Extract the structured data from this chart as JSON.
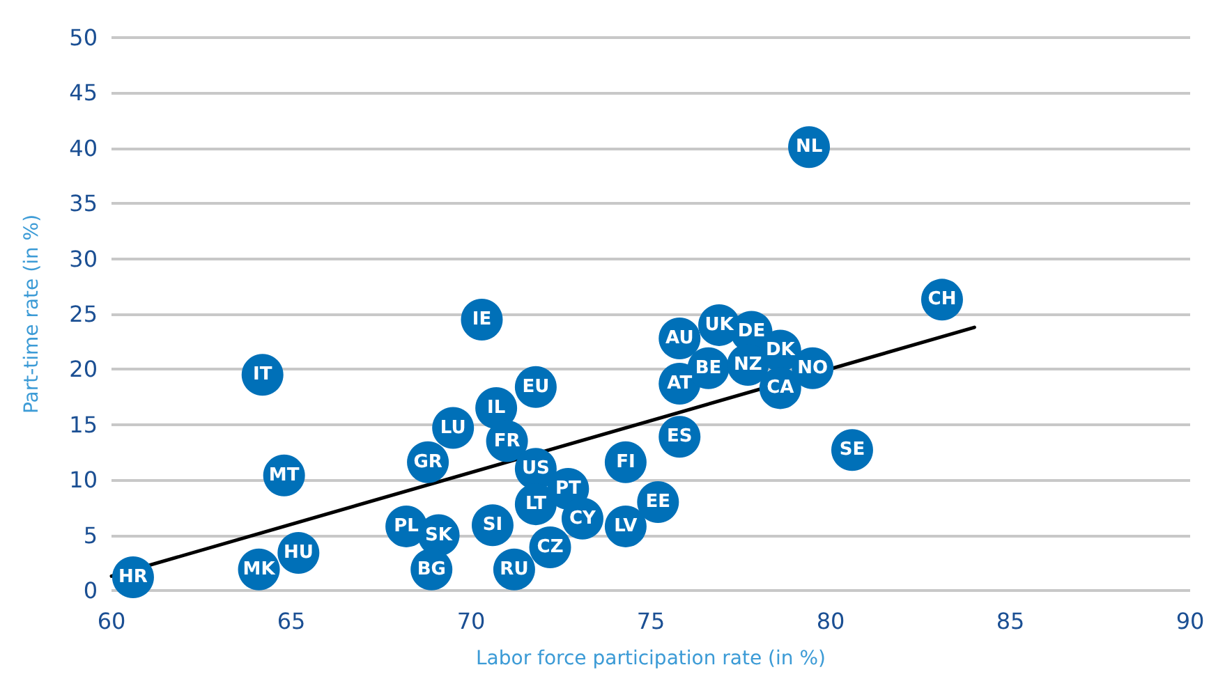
{
  "chart_data": {
    "type": "scatter",
    "xlabel": "Labor force participation rate (in %)",
    "ylabel": "Part-time rate (in %)",
    "xlim": [
      60,
      90
    ],
    "xticks": [
      60,
      65,
      70,
      75,
      80,
      85,
      90
    ],
    "ylim": [
      0,
      50
    ],
    "yticks": [
      0,
      5,
      10,
      15,
      20,
      25,
      30,
      35,
      40,
      45,
      50
    ],
    "grid": "y",
    "marker": "circle",
    "series": [
      {
        "type": "line",
        "color": "#000000",
        "x": [
          60.0,
          84.0
        ],
        "values": [
          1.3,
          23.8
        ],
        "marker": "none",
        "line_style": "solid"
      },
      {
        "type": "scatter",
        "color": "#0070b8",
        "x": [
          60.6,
          64.1,
          65.2,
          64.2,
          64.8,
          68.2,
          69.1,
          68.9,
          68.8,
          69.5,
          70.3,
          70.7,
          71.0,
          70.6,
          71.2,
          71.8,
          71.8,
          71.8,
          72.2,
          72.7,
          73.1,
          74.3,
          74.3,
          75.2,
          75.8,
          75.8,
          75.8,
          76.6,
          76.9,
          77.8,
          77.7,
          78.6,
          78.6,
          79.5,
          79.4,
          80.6,
          83.1
        ],
        "values": [
          1.2,
          1.9,
          3.4,
          19.5,
          10.4,
          5.8,
          5.0,
          1.9,
          11.6,
          14.7,
          24.5,
          16.5,
          13.5,
          5.9,
          1.9,
          18.4,
          11.0,
          7.8,
          3.9,
          9.2,
          6.5,
          11.6,
          5.8,
          8.0,
          13.9,
          22.8,
          18.7,
          20.1,
          24.0,
          23.4,
          20.4,
          21.7,
          18.3,
          20.1,
          40.1,
          12.7,
          26.3
        ],
        "value_labels": [
          "HR",
          "MK",
          "HU",
          "IT",
          "MT",
          "PL",
          "SK",
          "BG",
          "GR",
          "LU",
          "IE",
          "IL",
          "FR",
          "SI",
          "RU",
          "EU",
          "US",
          "LT",
          "CZ",
          "PT",
          "CY",
          "FI",
          "LV",
          "EE",
          "ES",
          "AU",
          "AT",
          "BE",
          "UK",
          "DE",
          "NZ",
          "DK",
          "CA",
          "NO",
          "NL",
          "SE",
          "CH"
        ]
      }
    ]
  }
}
